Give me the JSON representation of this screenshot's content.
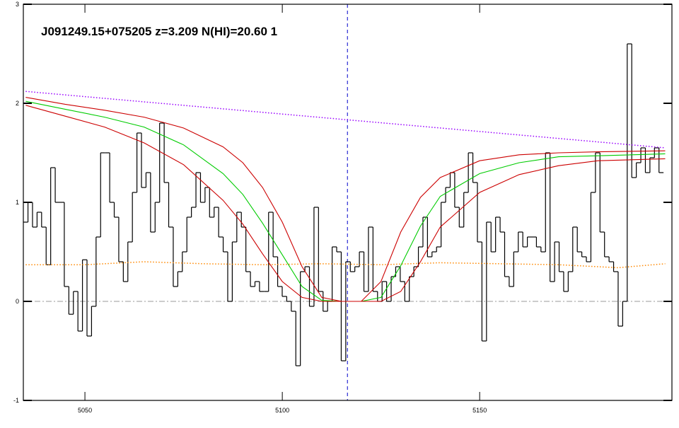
{
  "chart_data": {
    "type": "line",
    "title": "J091249.15+075205 z=3.209 N(HI)=20.60 1",
    "xlim": [
      5034.4,
      5198.7
    ],
    "ylim": [
      -1,
      3
    ],
    "xticks": [
      5050,
      5100,
      5150
    ],
    "yticks": [
      -1,
      0,
      1,
      2,
      3
    ],
    "series": [
      {
        "color": "#000000",
        "drawstyle": "steps-mid",
        "linestyle": "solid",
        "x": [
          5035,
          5036.15,
          5037.3,
          5038.45,
          5039.6,
          5040.75,
          5041.9,
          5043.05,
          5044.2,
          5045.35,
          5046.5,
          5047.65,
          5048.8,
          5049.95,
          5051.1,
          5052.25,
          5053.4,
          5054.55,
          5055.7,
          5056.85,
          5058,
          5059.15,
          5060.3,
          5061.45,
          5062.6,
          5063.75,
          5064.9,
          5066.05,
          5067.2,
          5068.35,
          5069.5,
          5070.65,
          5071.8,
          5072.95,
          5074.1,
          5075.25,
          5076.4,
          5077.55,
          5078.7,
          5079.85,
          5081,
          5082.15,
          5083.3,
          5084.45,
          5085.6,
          5086.75,
          5087.9,
          5089.05,
          5090.2,
          5091.35,
          5092.5,
          5093.65,
          5094.8,
          5095.95,
          5097.1,
          5098.25,
          5099.4,
          5100.55,
          5101.7,
          5102.85,
          5104,
          5105.15,
          5106.3,
          5107.45,
          5108.6,
          5109.75,
          5110.9,
          5112.05,
          5113.2,
          5114.35,
          5115.5,
          5116.65,
          5117.8,
          5118.95,
          5120.1,
          5121.25,
          5122.4,
          5123.55,
          5124.7,
          5125.85,
          5127,
          5128.15,
          5129.3,
          5130.45,
          5131.6,
          5132.75,
          5133.9,
          5135.05,
          5136.2,
          5137.35,
          5138.5,
          5139.65,
          5140.8,
          5141.95,
          5143.1,
          5144.25,
          5145.4,
          5146.55,
          5147.7,
          5148.85,
          5150,
          5151.15,
          5152.3,
          5153.45,
          5154.6,
          5155.75,
          5156.9,
          5158.05,
          5159.2,
          5160.35,
          5161.5,
          5162.65,
          5163.8,
          5164.95,
          5166.1,
          5167.25,
          5168.4,
          5169.55,
          5170.7,
          5171.85,
          5173,
          5174.15,
          5175.3,
          5176.45,
          5177.6,
          5178.75,
          5179.9,
          5181.05,
          5182.2,
          5183.35,
          5184.5,
          5185.65,
          5186.8,
          5187.95,
          5189.1,
          5190.25,
          5191.4,
          5192.55,
          5193.7,
          5194.85,
          5196
        ],
        "values": [
          0.8,
          1.0,
          0.75,
          0.9,
          0.75,
          0.37,
          1.35,
          1.0,
          1.0,
          0.15,
          -0.13,
          0.1,
          -0.3,
          0.42,
          -0.35,
          -0.05,
          0.65,
          1.5,
          1.5,
          1.0,
          0.85,
          0.4,
          0.2,
          0.6,
          1.1,
          1.7,
          1.15,
          1.3,
          0.7,
          1.0,
          1.8,
          1.2,
          0.75,
          0.15,
          0.3,
          0.5,
          0.85,
          0.95,
          1.3,
          1.0,
          1.15,
          0.85,
          0.95,
          0.65,
          0.5,
          0.0,
          0.6,
          0.9,
          0.75,
          0.3,
          0.15,
          0.2,
          0.1,
          0.1,
          0.9,
          0.45,
          0.15,
          0.05,
          0.0,
          -0.1,
          -0.65,
          0.3,
          0.35,
          -0.05,
          0.95,
          0.1,
          -0.1,
          0.0,
          0.55,
          0.5,
          -0.6,
          0.4,
          0.3,
          0.35,
          0.5,
          0.1,
          0.75,
          0.1,
          0.0,
          0.2,
          0.0,
          0.25,
          0.35,
          0.2,
          0.0,
          0.25,
          0.35,
          0.55,
          0.85,
          0.45,
          0.5,
          0.55,
          1.0,
          1.15,
          1.3,
          0.95,
          0.75,
          1.1,
          1.5,
          1.2,
          0.6,
          -0.4,
          0.8,
          0.5,
          0.85,
          0.7,
          0.25,
          0.15,
          0.5,
          0.7,
          0.55,
          0.65,
          0.65,
          0.55,
          0.5,
          1.5,
          0.2,
          0.6,
          0.3,
          0.1,
          0.3,
          0.75,
          0.5,
          0.45,
          0.4,
          1.1,
          1.5,
          0.7,
          0.45,
          0.4,
          0.3,
          -0.25,
          0.0,
          2.6,
          1.25,
          1.4,
          1.55,
          1.3,
          1.45,
          1.55,
          1.3
        ]
      },
      {
        "color": "#ff8800",
        "drawstyle": "default",
        "linestyle": "dotted",
        "x": [
          5035,
          5050,
          5065,
          5080,
          5095,
          5110,
          5125,
          5140,
          5155,
          5170,
          5185,
          5197
        ],
        "values": [
          0.37,
          0.37,
          0.4,
          0.38,
          0.37,
          0.38,
          0.37,
          0.39,
          0.38,
          0.37,
          0.34,
          0.38
        ]
      },
      {
        "color": "#9900ff",
        "drawstyle": "default",
        "linestyle": "dotted",
        "x": [
          5035,
          5197
        ],
        "values": [
          2.12,
          1.55
        ]
      },
      {
        "color": "#00cc00",
        "drawstyle": "default",
        "linestyle": "solid",
        "x": [
          5035,
          5045,
          5055,
          5065,
          5075,
          5085,
          5090,
          5095,
          5100,
          5105,
          5110,
          5115,
          5120,
          5125,
          5130,
          5135,
          5140,
          5150,
          5160,
          5170,
          5180,
          5197
        ],
        "values": [
          2.02,
          1.94,
          1.86,
          1.76,
          1.58,
          1.29,
          1.08,
          0.79,
          0.47,
          0.15,
          0.01,
          0,
          0,
          0.04,
          0.36,
          0.76,
          1.06,
          1.29,
          1.4,
          1.46,
          1.47,
          1.49
        ]
      },
      {
        "color": "#cc0000",
        "drawstyle": "default",
        "linestyle": "solid",
        "x": [
          5035,
          5045,
          5055,
          5065,
          5075,
          5085,
          5090,
          5095,
          5100,
          5105,
          5110,
          5115,
          5120,
          5125,
          5130,
          5135,
          5140,
          5150,
          5160,
          5170,
          5180,
          5197
        ],
        "values": [
          2.06,
          1.99,
          1.93,
          1.86,
          1.75,
          1.56,
          1.4,
          1.15,
          0.8,
          0.35,
          0.04,
          0,
          0,
          0.2,
          0.7,
          1.05,
          1.25,
          1.42,
          1.48,
          1.5,
          1.51,
          1.52
        ]
      },
      {
        "color": "#cc0000",
        "drawstyle": "default",
        "linestyle": "solid",
        "x": [
          5035,
          5045,
          5055,
          5065,
          5075,
          5085,
          5090,
          5095,
          5100,
          5105,
          5110,
          5115,
          5120,
          5125,
          5130,
          5135,
          5140,
          5150,
          5160,
          5170,
          5180,
          5197
        ],
        "values": [
          1.98,
          1.87,
          1.76,
          1.6,
          1.38,
          1.02,
          0.78,
          0.48,
          0.2,
          0.04,
          0,
          0,
          0,
          0,
          0.1,
          0.4,
          0.75,
          1.1,
          1.28,
          1.37,
          1.42,
          1.44
        ]
      }
    ],
    "reference_lines": [
      {
        "axis": "y",
        "value": 0,
        "color": "#999999",
        "linestyle": "dashdot"
      },
      {
        "axis": "x",
        "value": 5116.5,
        "color": "#0000cc",
        "linestyle": "dashed"
      }
    ]
  }
}
